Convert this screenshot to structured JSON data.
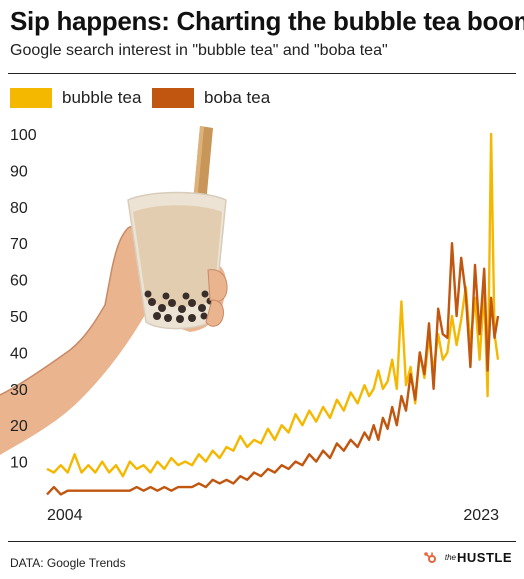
{
  "header": {
    "title": "Sip happens: Charting the bubble tea boom",
    "subtitle": "Google search interest in \"bubble tea\" and \"boba tea\""
  },
  "footer": {
    "source": "DATA: Google Trends",
    "brand_prefix": "the",
    "brand_name": "HUSTLE"
  },
  "colors": {
    "bubble_tea": "#F5B800",
    "boba_tea": "#C0560F",
    "brand_orange": "#E8663C"
  },
  "chart_data": {
    "type": "line",
    "title": "Sip happens: Charting the bubble tea boom",
    "subtitle": "Google search interest in \"bubble tea\" and \"boba tea\"",
    "xlabel": "",
    "ylabel": "",
    "ylim": [
      0,
      100
    ],
    "yticks": [
      10,
      20,
      30,
      40,
      50,
      60,
      70,
      80,
      90,
      100
    ],
    "xticks": [
      "2004",
      "2023"
    ],
    "xlim": [
      2004,
      2023.6
    ],
    "grid": false,
    "legend": "top-left",
    "series": [
      {
        "name": "bubble tea",
        "color": "#F5B800",
        "x": [
          2004.0,
          2004.3,
          2004.6,
          2004.9,
          2005.2,
          2005.5,
          2005.8,
          2006.1,
          2006.4,
          2006.7,
          2007.0,
          2007.3,
          2007.6,
          2007.9,
          2008.2,
          2008.5,
          2008.8,
          2009.1,
          2009.4,
          2009.7,
          2010.0,
          2010.3,
          2010.6,
          2010.9,
          2011.2,
          2011.5,
          2011.8,
          2012.1,
          2012.4,
          2012.7,
          2013.0,
          2013.3,
          2013.6,
          2013.9,
          2014.2,
          2014.5,
          2014.8,
          2015.1,
          2015.4,
          2015.7,
          2016.0,
          2016.3,
          2016.6,
          2016.9,
          2017.2,
          2017.5,
          2017.8,
          2018.0,
          2018.2,
          2018.4,
          2018.6,
          2018.8,
          2019.0,
          2019.2,
          2019.4,
          2019.6,
          2019.8,
          2020.0,
          2020.2,
          2020.4,
          2020.6,
          2020.8,
          2021.0,
          2021.2,
          2021.4,
          2021.6,
          2021.8,
          2022.0,
          2022.2,
          2022.4,
          2022.6,
          2022.8,
          2023.0,
          2023.15,
          2023.3,
          2023.45,
          2023.6
        ],
        "values": [
          8,
          7,
          9,
          7,
          12,
          7,
          9,
          7,
          10,
          7,
          9,
          6,
          10,
          8,
          9,
          7,
          10,
          8,
          11,
          9,
          10,
          9,
          12,
          10,
          13,
          11,
          14,
          13,
          17,
          14,
          16,
          15,
          19,
          16,
          20,
          18,
          23,
          20,
          24,
          21,
          25,
          22,
          27,
          24,
          29,
          26,
          31,
          28,
          30,
          35,
          30,
          32,
          38,
          30,
          54,
          31,
          36,
          26,
          40,
          33,
          44,
          35,
          45,
          38,
          40,
          50,
          42,
          49,
          58,
          42,
          55,
          38,
          57,
          28,
          100,
          45,
          38
        ]
      },
      {
        "name": "boba tea",
        "color": "#C0560F",
        "x": [
          2004.0,
          2004.3,
          2004.6,
          2004.9,
          2005.2,
          2005.5,
          2005.8,
          2006.1,
          2006.4,
          2006.7,
          2007.0,
          2007.3,
          2007.6,
          2007.9,
          2008.2,
          2008.5,
          2008.8,
          2009.1,
          2009.4,
          2009.7,
          2010.0,
          2010.3,
          2010.6,
          2010.9,
          2011.2,
          2011.5,
          2011.8,
          2012.1,
          2012.4,
          2012.7,
          2013.0,
          2013.3,
          2013.6,
          2013.9,
          2014.2,
          2014.5,
          2014.8,
          2015.1,
          2015.4,
          2015.7,
          2016.0,
          2016.3,
          2016.6,
          2016.9,
          2017.2,
          2017.5,
          2017.8,
          2018.0,
          2018.2,
          2018.4,
          2018.6,
          2018.8,
          2019.0,
          2019.2,
          2019.4,
          2019.6,
          2019.8,
          2020.0,
          2020.2,
          2020.4,
          2020.6,
          2020.8,
          2021.0,
          2021.2,
          2021.4,
          2021.6,
          2021.8,
          2022.0,
          2022.2,
          2022.4,
          2022.6,
          2022.8,
          2023.0,
          2023.15,
          2023.3,
          2023.45,
          2023.6
        ],
        "values": [
          1,
          3,
          1,
          2,
          2,
          2,
          2,
          2,
          2,
          2,
          2,
          2,
          2,
          3,
          2,
          3,
          2,
          3,
          2,
          3,
          3,
          3,
          4,
          3,
          5,
          4,
          5,
          4,
          6,
          5,
          7,
          6,
          8,
          7,
          9,
          8,
          10,
          9,
          12,
          10,
          13,
          11,
          15,
          13,
          16,
          14,
          18,
          16,
          20,
          16,
          22,
          19,
          25,
          20,
          28,
          24,
          34,
          27,
          40,
          34,
          48,
          30,
          52,
          45,
          44,
          70,
          50,
          66,
          56,
          36,
          64,
          45,
          63,
          35,
          55,
          44,
          50
        ]
      }
    ]
  }
}
